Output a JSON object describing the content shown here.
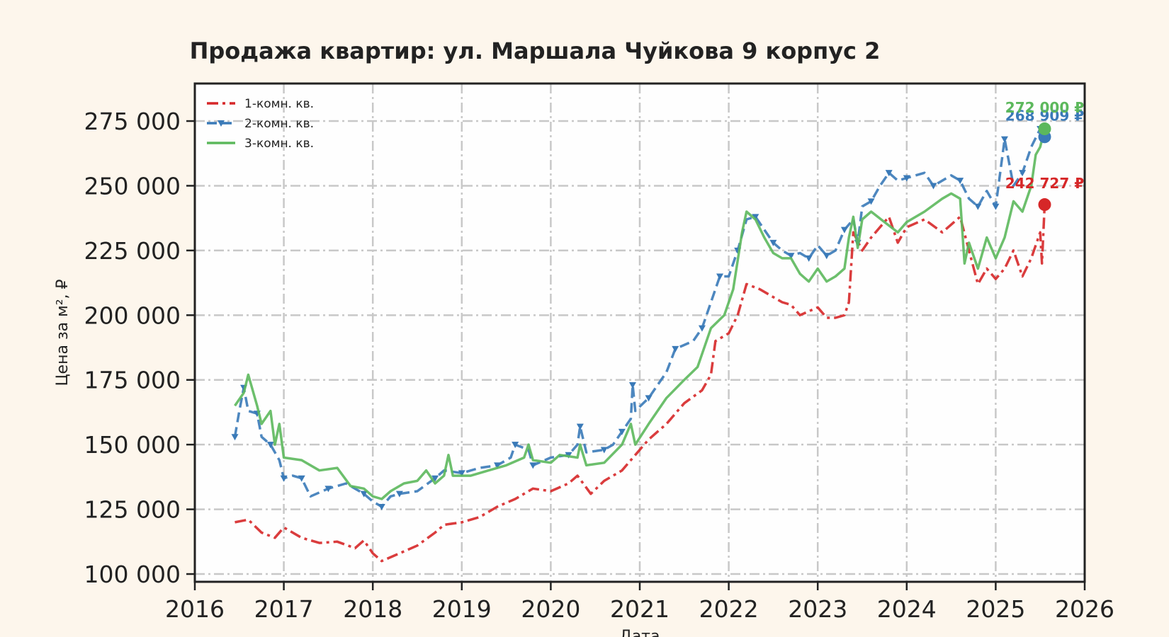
{
  "chart_data": {
    "type": "line",
    "title": "Продажа квартир: ул. Маршала Чуйкова 9 корпус 2",
    "xlabel": "Дата",
    "ylabel": "Цена за м², ₽",
    "xlim": [
      2016.0,
      2026.0
    ],
    "ylim": [
      97000,
      289500
    ],
    "x_ticks": [
      "2016",
      "2017",
      "2018",
      "2019",
      "2020",
      "2021",
      "2022",
      "2023",
      "2024",
      "2025",
      "2026"
    ],
    "y_ticks": [
      "100 000",
      "125 000",
      "150 000",
      "175 000",
      "200 000",
      "225 000",
      "250 000",
      "275 000"
    ],
    "grid": true,
    "legend_position": "top-left",
    "series": [
      {
        "name": "1-комн. кв.",
        "color": "#d62728",
        "style": "dash-dot",
        "end_label": "242 727 ₽",
        "points": [
          [
            2016.45,
            120000
          ],
          [
            2016.6,
            121000
          ],
          [
            2016.75,
            116000
          ],
          [
            2016.9,
            114000
          ],
          [
            2017.0,
            118000
          ],
          [
            2017.2,
            114000
          ],
          [
            2017.4,
            112000
          ],
          [
            2017.6,
            112500
          ],
          [
            2017.8,
            110000
          ],
          [
            2017.9,
            113000
          ],
          [
            2018.0,
            108000
          ],
          [
            2018.1,
            105000
          ],
          [
            2018.3,
            108000
          ],
          [
            2018.5,
            111000
          ],
          [
            2018.7,
            116000
          ],
          [
            2018.8,
            119000
          ],
          [
            2019.0,
            120000
          ],
          [
            2019.2,
            122000
          ],
          [
            2019.4,
            126000
          ],
          [
            2019.6,
            129000
          ],
          [
            2019.8,
            133000
          ],
          [
            2020.0,
            132000
          ],
          [
            2020.2,
            135000
          ],
          [
            2020.3,
            138000
          ],
          [
            2020.45,
            131000
          ],
          [
            2020.6,
            136000
          ],
          [
            2020.8,
            140000
          ],
          [
            2020.95,
            146000
          ],
          [
            2021.1,
            152000
          ],
          [
            2021.3,
            158000
          ],
          [
            2021.5,
            166000
          ],
          [
            2021.7,
            171000
          ],
          [
            2021.8,
            177000
          ],
          [
            2021.85,
            190000
          ],
          [
            2022.0,
            193000
          ],
          [
            2022.1,
            200000
          ],
          [
            2022.2,
            212000
          ],
          [
            2022.35,
            210000
          ],
          [
            2022.5,
            207000
          ],
          [
            2022.6,
            205000
          ],
          [
            2022.7,
            204000
          ],
          [
            2022.8,
            200000
          ],
          [
            2023.0,
            203000
          ],
          [
            2023.1,
            199000
          ],
          [
            2023.2,
            199000
          ],
          [
            2023.3,
            200000
          ],
          [
            2023.35,
            205000
          ],
          [
            2023.4,
            232000
          ],
          [
            2023.5,
            225000
          ],
          [
            2023.6,
            230000
          ],
          [
            2023.8,
            238000
          ],
          [
            2023.9,
            228000
          ],
          [
            2024.0,
            234000
          ],
          [
            2024.2,
            237000
          ],
          [
            2024.4,
            232000
          ],
          [
            2024.6,
            238000
          ],
          [
            2024.7,
            225000
          ],
          [
            2024.8,
            212000
          ],
          [
            2024.9,
            218000
          ],
          [
            2025.0,
            214000
          ],
          [
            2025.1,
            218000
          ],
          [
            2025.2,
            225000
          ],
          [
            2025.3,
            215000
          ],
          [
            2025.4,
            222000
          ],
          [
            2025.5,
            232000
          ],
          [
            2025.52,
            220000
          ],
          [
            2025.55,
            242727
          ]
        ]
      },
      {
        "name": "2-комн. кв.",
        "color": "#3a7ab8",
        "style": "dashed-markers",
        "end_label": "268 909 ₽",
        "points": [
          [
            2016.45,
            153000
          ],
          [
            2016.5,
            163000
          ],
          [
            2016.55,
            172000
          ],
          [
            2016.6,
            163000
          ],
          [
            2016.7,
            162000
          ],
          [
            2016.75,
            153000
          ],
          [
            2016.85,
            150000
          ],
          [
            2016.95,
            144000
          ],
          [
            2017.0,
            137000
          ],
          [
            2017.1,
            138000
          ],
          [
            2017.2,
            137000
          ],
          [
            2017.3,
            130000
          ],
          [
            2017.5,
            133000
          ],
          [
            2017.7,
            135000
          ],
          [
            2017.9,
            131000
          ],
          [
            2018.0,
            128000
          ],
          [
            2018.1,
            126000
          ],
          [
            2018.2,
            130000
          ],
          [
            2018.3,
            131000
          ],
          [
            2018.5,
            132000
          ],
          [
            2018.7,
            137000
          ],
          [
            2018.8,
            140000
          ],
          [
            2019.0,
            139000
          ],
          [
            2019.2,
            141000
          ],
          [
            2019.4,
            142000
          ],
          [
            2019.55,
            145000
          ],
          [
            2019.6,
            150000
          ],
          [
            2019.75,
            148000
          ],
          [
            2019.8,
            142000
          ],
          [
            2020.0,
            145000
          ],
          [
            2020.2,
            146000
          ],
          [
            2020.3,
            150000
          ],
          [
            2020.33,
            157000
          ],
          [
            2020.4,
            147000
          ],
          [
            2020.6,
            148000
          ],
          [
            2020.7,
            150000
          ],
          [
            2020.8,
            155000
          ],
          [
            2020.9,
            160000
          ],
          [
            2020.92,
            173000
          ],
          [
            2020.95,
            163000
          ],
          [
            2021.1,
            168000
          ],
          [
            2021.3,
            178000
          ],
          [
            2021.4,
            187000
          ],
          [
            2021.6,
            190000
          ],
          [
            2021.7,
            195000
          ],
          [
            2021.8,
            205000
          ],
          [
            2021.9,
            215000
          ],
          [
            2022.0,
            215000
          ],
          [
            2022.1,
            225000
          ],
          [
            2022.2,
            237000
          ],
          [
            2022.3,
            238000
          ],
          [
            2022.4,
            233000
          ],
          [
            2022.5,
            228000
          ],
          [
            2022.6,
            225000
          ],
          [
            2022.7,
            223000
          ],
          [
            2022.8,
            224000
          ],
          [
            2022.9,
            222000
          ],
          [
            2023.0,
            227000
          ],
          [
            2023.1,
            223000
          ],
          [
            2023.2,
            225000
          ],
          [
            2023.3,
            233000
          ],
          [
            2023.4,
            237000
          ],
          [
            2023.45,
            228000
          ],
          [
            2023.5,
            242000
          ],
          [
            2023.6,
            244000
          ],
          [
            2023.7,
            250000
          ],
          [
            2023.8,
            255000
          ],
          [
            2023.9,
            252000
          ],
          [
            2024.0,
            253000
          ],
          [
            2024.2,
            255000
          ],
          [
            2024.3,
            250000
          ],
          [
            2024.5,
            254000
          ],
          [
            2024.6,
            252000
          ],
          [
            2024.7,
            245000
          ],
          [
            2024.8,
            242000
          ],
          [
            2024.9,
            248000
          ],
          [
            2025.0,
            242000
          ],
          [
            2025.05,
            255000
          ],
          [
            2025.1,
            268000
          ],
          [
            2025.2,
            250000
          ],
          [
            2025.3,
            255000
          ],
          [
            2025.4,
            265000
          ],
          [
            2025.5,
            272000
          ],
          [
            2025.55,
            268909
          ]
        ]
      },
      {
        "name": "3-комн. кв.",
        "color": "#5cb85c",
        "style": "solid",
        "end_label": "272 000 ₽",
        "points": [
          [
            2016.45,
            165000
          ],
          [
            2016.55,
            170000
          ],
          [
            2016.6,
            177000
          ],
          [
            2016.7,
            165000
          ],
          [
            2016.75,
            158000
          ],
          [
            2016.85,
            163000
          ],
          [
            2016.9,
            150000
          ],
          [
            2016.95,
            158000
          ],
          [
            2017.0,
            145000
          ],
          [
            2017.2,
            144000
          ],
          [
            2017.4,
            140000
          ],
          [
            2017.6,
            141000
          ],
          [
            2017.75,
            134000
          ],
          [
            2017.9,
            133000
          ],
          [
            2018.0,
            130000
          ],
          [
            2018.1,
            129000
          ],
          [
            2018.2,
            132000
          ],
          [
            2018.35,
            135000
          ],
          [
            2018.5,
            136000
          ],
          [
            2018.6,
            140000
          ],
          [
            2018.7,
            135000
          ],
          [
            2018.8,
            138000
          ],
          [
            2018.85,
            146000
          ],
          [
            2018.9,
            138000
          ],
          [
            2019.1,
            138000
          ],
          [
            2019.3,
            140000
          ],
          [
            2019.5,
            142000
          ],
          [
            2019.7,
            145000
          ],
          [
            2019.75,
            150000
          ],
          [
            2019.8,
            144000
          ],
          [
            2020.0,
            143000
          ],
          [
            2020.1,
            146000
          ],
          [
            2020.3,
            145000
          ],
          [
            2020.33,
            150000
          ],
          [
            2020.4,
            142000
          ],
          [
            2020.6,
            143000
          ],
          [
            2020.8,
            150000
          ],
          [
            2020.9,
            158000
          ],
          [
            2020.95,
            150000
          ],
          [
            2021.1,
            158000
          ],
          [
            2021.3,
            168000
          ],
          [
            2021.5,
            175000
          ],
          [
            2021.65,
            180000
          ],
          [
            2021.8,
            195000
          ],
          [
            2021.95,
            200000
          ],
          [
            2022.05,
            210000
          ],
          [
            2022.15,
            232000
          ],
          [
            2022.2,
            240000
          ],
          [
            2022.3,
            237000
          ],
          [
            2022.4,
            230000
          ],
          [
            2022.5,
            224000
          ],
          [
            2022.6,
            222000
          ],
          [
            2022.7,
            222000
          ],
          [
            2022.8,
            216000
          ],
          [
            2022.9,
            213000
          ],
          [
            2023.0,
            218000
          ],
          [
            2023.1,
            213000
          ],
          [
            2023.2,
            215000
          ],
          [
            2023.3,
            218000
          ],
          [
            2023.35,
            230000
          ],
          [
            2023.4,
            238000
          ],
          [
            2023.45,
            226000
          ],
          [
            2023.5,
            237000
          ],
          [
            2023.6,
            240000
          ],
          [
            2023.75,
            236000
          ],
          [
            2023.9,
            232000
          ],
          [
            2024.0,
            236000
          ],
          [
            2024.2,
            240000
          ],
          [
            2024.4,
            245000
          ],
          [
            2024.5,
            247000
          ],
          [
            2024.6,
            245000
          ],
          [
            2024.65,
            220000
          ],
          [
            2024.7,
            228000
          ],
          [
            2024.8,
            218000
          ],
          [
            2024.9,
            230000
          ],
          [
            2025.0,
            222000
          ],
          [
            2025.1,
            230000
          ],
          [
            2025.2,
            244000
          ],
          [
            2025.3,
            240000
          ],
          [
            2025.4,
            250000
          ],
          [
            2025.45,
            262000
          ],
          [
            2025.5,
            265000
          ],
          [
            2025.55,
            272000
          ]
        ]
      }
    ]
  }
}
